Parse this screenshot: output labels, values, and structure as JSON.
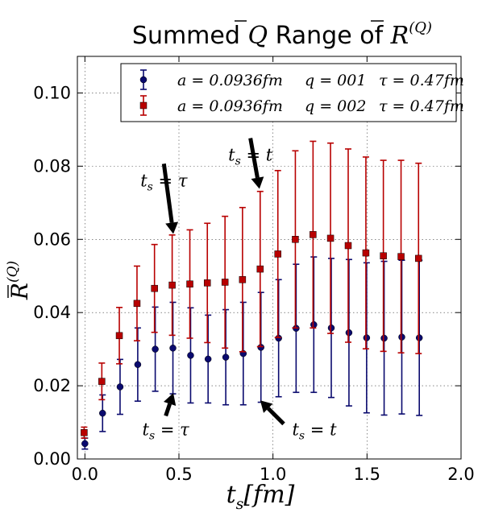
{
  "chart_data": {
    "type": "scatter",
    "title_main": "Summed ",
    "title_q": "Q",
    "title_mid": " Range of ",
    "title_r": "R",
    "title_sup": "(Q)",
    "xlabel_main": "t",
    "xlabel_sub": "s",
    "xlabel_tail": "[fm]",
    "ylabel_main": "R",
    "ylabel_sup": "(Q)",
    "xlim": [
      -0.04,
      2.0
    ],
    "ylim": [
      0.0,
      0.11
    ],
    "xticks": [
      "0.0",
      "0.5",
      "1.0",
      "1.5",
      "2.0"
    ],
    "yticks": [
      "0.00",
      "0.02",
      "0.04",
      "0.06",
      "0.08",
      "0.10"
    ],
    "grid": true,
    "legend_position": "top-right",
    "series": [
      {
        "legend_a": "a = 0.0936fm",
        "legend_q": "q = 001",
        "legend_tau": "τ = 0.47fm",
        "color": "#0a0a6e",
        "marker": "circle",
        "x": [
          0.0,
          0.094,
          0.187,
          0.281,
          0.374,
          0.468,
          0.562,
          0.655,
          0.749,
          0.842,
          0.936,
          1.03,
          1.123,
          1.217,
          1.31,
          1.404,
          1.498,
          1.591,
          1.685,
          1.778
        ],
        "y": [
          0.0042,
          0.0125,
          0.0197,
          0.0258,
          0.03,
          0.0303,
          0.0283,
          0.0273,
          0.0278,
          0.0288,
          0.0305,
          0.033,
          0.0357,
          0.0367,
          0.0358,
          0.0345,
          0.0331,
          0.033,
          0.0333,
          0.0331
        ],
        "yerr": [
          0.0015,
          0.005,
          0.0075,
          0.01,
          0.0115,
          0.0125,
          0.013,
          0.012,
          0.013,
          0.014,
          0.015,
          0.016,
          0.0175,
          0.0185,
          0.019,
          0.02,
          0.0205,
          0.021,
          0.021,
          0.0212
        ]
      },
      {
        "legend_a": "a = 0.0936fm",
        "legend_q": "q = 002",
        "legend_tau": "τ = 0.47fm",
        "color": "#b80000",
        "marker": "square",
        "x": [
          -0.004,
          0.09,
          0.183,
          0.277,
          0.37,
          0.464,
          0.558,
          0.651,
          0.745,
          0.838,
          0.932,
          1.026,
          1.119,
          1.213,
          1.306,
          1.4,
          1.494,
          1.587,
          1.681,
          1.774
        ],
        "y": [
          0.0072,
          0.0212,
          0.0337,
          0.0425,
          0.0466,
          0.0475,
          0.0478,
          0.0481,
          0.0483,
          0.049,
          0.0519,
          0.056,
          0.06,
          0.0613,
          0.0603,
          0.0583,
          0.0563,
          0.0555,
          0.0553,
          0.0548
        ],
        "yerr": [
          0.0015,
          0.005,
          0.0077,
          0.0102,
          0.012,
          0.0137,
          0.0148,
          0.0163,
          0.018,
          0.0197,
          0.0212,
          0.0228,
          0.0242,
          0.0255,
          0.026,
          0.0264,
          0.0262,
          0.0261,
          0.0263,
          0.026
        ]
      }
    ],
    "annotations": [
      {
        "label_t": "t",
        "label_s": "s",
        "label_eq": " = ",
        "label_rhs": "τ",
        "target": [
          0.47,
          0.0615
        ],
        "text_at": [
          0.42,
          0.0745
        ],
        "series": 1
      },
      {
        "label_t": "t",
        "label_s": "s",
        "label_eq": " = ",
        "label_rhs": "t",
        "target": [
          0.928,
          0.0738
        ],
        "text_at": [
          0.88,
          0.0815
        ],
        "series": 1
      },
      {
        "label_t": "t",
        "label_s": "s",
        "label_eq": " = ",
        "label_rhs": "τ",
        "target": [
          0.47,
          0.018
        ],
        "text_at": [
          0.43,
          0.0065
        ],
        "series": 0
      },
      {
        "label_t": "t",
        "label_s": "s",
        "label_eq": " = ",
        "label_rhs": "t",
        "target": [
          0.932,
          0.016
        ],
        "text_at": [
          1.22,
          0.0065
        ],
        "series": 0
      }
    ]
  }
}
